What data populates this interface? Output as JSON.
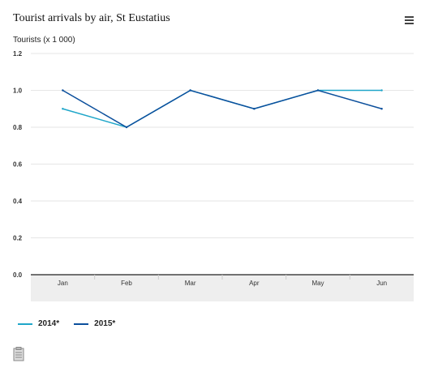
{
  "chart_data": {
    "type": "line",
    "title": "Tourist arrivals by air, St Eustatius",
    "ylabel": "Tourists (x 1 000)",
    "xlabel": "",
    "categories": [
      "Jan",
      "Feb",
      "Mar",
      "Apr",
      "May",
      "Jun"
    ],
    "ylim": [
      0,
      1.2
    ],
    "yticks": [
      "0.0",
      "0.2",
      "0.4",
      "0.6",
      "0.8",
      "1.0",
      "1.2"
    ],
    "grid": true,
    "legend_position": "bottom-left",
    "series": [
      {
        "name": "2014*",
        "color": "#1fa6c9",
        "values": [
          0.9,
          0.8,
          1.0,
          0.9,
          1.0,
          1.0
        ]
      },
      {
        "name": "2015*",
        "color": "#0b4f9c",
        "values": [
          1.0,
          0.8,
          1.0,
          0.9,
          1.0,
          0.9
        ]
      }
    ]
  }
}
